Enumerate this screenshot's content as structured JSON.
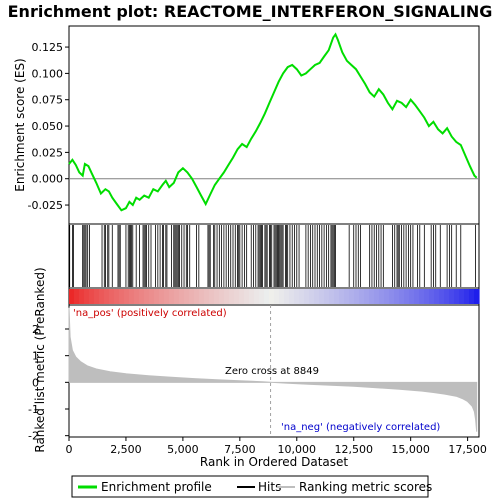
{
  "chart_data": {
    "type": "line",
    "title": "Enrichment plot: REACTOME_INTERFERON_SIGNALING",
    "xlabel": "Rank in Ordered Dataset",
    "ylabel_top": "Enrichment score (ES)",
    "ylabel_bottom": "Ranked list metric (PreRanked)",
    "xlim": [
      0,
      18000
    ],
    "xticks": [
      0,
      2500,
      5000,
      7500,
      10000,
      12500,
      15000,
      17500
    ],
    "xtick_labels": [
      "0",
      "2,500",
      "5,000",
      "7,500",
      "10,000",
      "12,500",
      "15,000",
      "17,500"
    ],
    "es_ylim": [
      -0.043,
      0.145
    ],
    "es_yticks": [
      -0.025,
      0.0,
      0.025,
      0.05,
      0.075,
      0.1,
      0.125
    ],
    "es_ytick_labels": [
      "-0.025",
      "0.000",
      "0.025",
      "0.050",
      "0.075",
      "0.100",
      "0.125"
    ],
    "metric_ylim": [
      -2.05,
      2.9
    ],
    "metric_yticks": [
      -2,
      -1,
      0,
      1,
      2
    ],
    "metric_ytick_labels": [
      "-2",
      "-1",
      "0",
      "1",
      "2"
    ],
    "enrichment_profile": {
      "name": "Enrichment profile",
      "color": "#00dd00",
      "x": [
        0,
        150,
        300,
        450,
        600,
        700,
        850,
        1000,
        1200,
        1400,
        1600,
        1750,
        1900,
        2100,
        2300,
        2500,
        2650,
        2800,
        2950,
        3100,
        3300,
        3500,
        3700,
        3900,
        4100,
        4250,
        4400,
        4600,
        4800,
        5000,
        5200,
        5400,
        5600,
        5800,
        6000,
        6200,
        6400,
        6600,
        6800,
        7000,
        7200,
        7400,
        7600,
        7800,
        8000,
        8200,
        8400,
        8600,
        8800,
        9000,
        9200,
        9400,
        9600,
        9800,
        10000,
        10200,
        10400,
        10600,
        10800,
        11000,
        11200,
        11400,
        11600,
        11700,
        11800,
        12000,
        12200,
        12400,
        12600,
        12800,
        13000,
        13200,
        13400,
        13600,
        13800,
        14000,
        14200,
        14400,
        14600,
        14800,
        15000,
        15200,
        15400,
        15600,
        15800,
        16000,
        16200,
        16400,
        16600,
        16800,
        17000,
        17200,
        17400,
        17600,
        17800,
        17900
      ],
      "y": [
        0.014,
        0.018,
        0.013,
        0.006,
        0.003,
        0.014,
        0.012,
        0.005,
        -0.004,
        -0.014,
        -0.01,
        -0.012,
        -0.018,
        -0.024,
        -0.03,
        -0.028,
        -0.022,
        -0.025,
        -0.018,
        -0.02,
        -0.016,
        -0.018,
        -0.01,
        -0.012,
        -0.006,
        -0.002,
        -0.008,
        -0.004,
        0.006,
        0.01,
        0.006,
        0.0,
        -0.008,
        -0.016,
        -0.024,
        -0.015,
        -0.006,
        0.0,
        0.006,
        0.013,
        0.02,
        0.028,
        0.033,
        0.03,
        0.038,
        0.045,
        0.053,
        0.062,
        0.072,
        0.082,
        0.092,
        0.1,
        0.106,
        0.108,
        0.104,
        0.098,
        0.1,
        0.104,
        0.108,
        0.11,
        0.116,
        0.122,
        0.134,
        0.137,
        0.132,
        0.12,
        0.112,
        0.108,
        0.104,
        0.097,
        0.09,
        0.082,
        0.078,
        0.085,
        0.08,
        0.072,
        0.066,
        0.074,
        0.072,
        0.068,
        0.075,
        0.07,
        0.064,
        0.058,
        0.05,
        0.054,
        0.047,
        0.043,
        0.048,
        0.04,
        0.035,
        0.032,
        0.022,
        0.012,
        0.003,
        0.001
      ]
    },
    "hit_positions": [
      30,
      150,
      200,
      600,
      650,
      700,
      750,
      820,
      900,
      1450,
      1550,
      1600,
      1700,
      1750,
      1900,
      2150,
      2200,
      2250,
      2500,
      2600,
      2650,
      2700,
      2750,
      2800,
      2950,
      3100,
      3250,
      3300,
      3350,
      3400,
      3500,
      3600,
      3800,
      3900,
      4000,
      4100,
      4150,
      4250,
      4300,
      4500,
      4600,
      4650,
      4700,
      4750,
      4800,
      4850,
      4950,
      5050,
      5150,
      5200,
      5300,
      5600,
      5700,
      6100,
      6150,
      6200,
      6350,
      6400,
      6500,
      6600,
      6700,
      6800,
      6900,
      7000,
      7100,
      7200,
      7300,
      7400,
      7450,
      7500,
      7600,
      7700,
      7800,
      8000,
      8100,
      8200,
      8300,
      8350,
      8400,
      8450,
      8500,
      8600,
      8650,
      8700,
      8800,
      8850,
      8900,
      9000,
      9050,
      9100,
      9150,
      9200,
      9250,
      9300,
      9350,
      9400,
      9500,
      9550,
      9600,
      9700,
      9800,
      9900,
      10000,
      10100,
      10400,
      10500,
      10600,
      10700,
      10800,
      10900,
      11000,
      11100,
      11200,
      11300,
      11400,
      11500,
      11550,
      11600,
      11650,
      11700,
      12300,
      12500,
      12600,
      12700,
      12800,
      13200,
      13300,
      13400,
      13500,
      13600,
      13700,
      13800,
      14200,
      14300,
      14400,
      14450,
      14500,
      14600,
      14700,
      14800,
      14900,
      15000,
      15100,
      15300,
      15400,
      15600,
      15900,
      16000,
      16100,
      16300,
      16600,
      16700,
      16800,
      17000,
      17200,
      17850
    ],
    "ranked_metric": {
      "name": "Ranked list metric (PreRanked)",
      "x": [
        0,
        50,
        150,
        300,
        500,
        800,
        1200,
        1800,
        2500,
        3500,
        4500,
        5500,
        6500,
        7500,
        8500,
        8849,
        9500,
        10500,
        11500,
        12500,
        13500,
        14500,
        15500,
        16000,
        16500,
        17000,
        17300,
        17500,
        17700,
        17800,
        17850,
        17900
      ],
      "y": [
        2.8,
        1.7,
        1.2,
        0.95,
        0.78,
        0.62,
        0.5,
        0.4,
        0.32,
        0.25,
        0.19,
        0.14,
        0.1,
        0.06,
        0.02,
        0.0,
        -0.03,
        -0.07,
        -0.11,
        -0.15,
        -0.2,
        -0.26,
        -0.33,
        -0.38,
        -0.44,
        -0.52,
        -0.62,
        -0.72,
        -0.9,
        -1.1,
        -1.4,
        -1.85
      ]
    },
    "zero_cross_rank": 8849,
    "annotations": {
      "pos_label": "'na_pos' (positively correlated)",
      "neg_label": "'na_neg' (negatively correlated)",
      "zero_cross": "Zero cross at 8849"
    },
    "colors": {
      "profile": "#00dd00",
      "hits": "#000000",
      "metric_fill": "#bebebe",
      "pos_text": "#cc0000",
      "neg_text": "#0000cc",
      "zero_line": "#a0a0a0"
    },
    "legend": {
      "items": [
        {
          "label": "Enrichment profile",
          "type": "profile"
        },
        {
          "label": "Hits",
          "type": "hits"
        },
        {
          "label": "Ranking metric scores",
          "type": "metric"
        }
      ]
    }
  }
}
